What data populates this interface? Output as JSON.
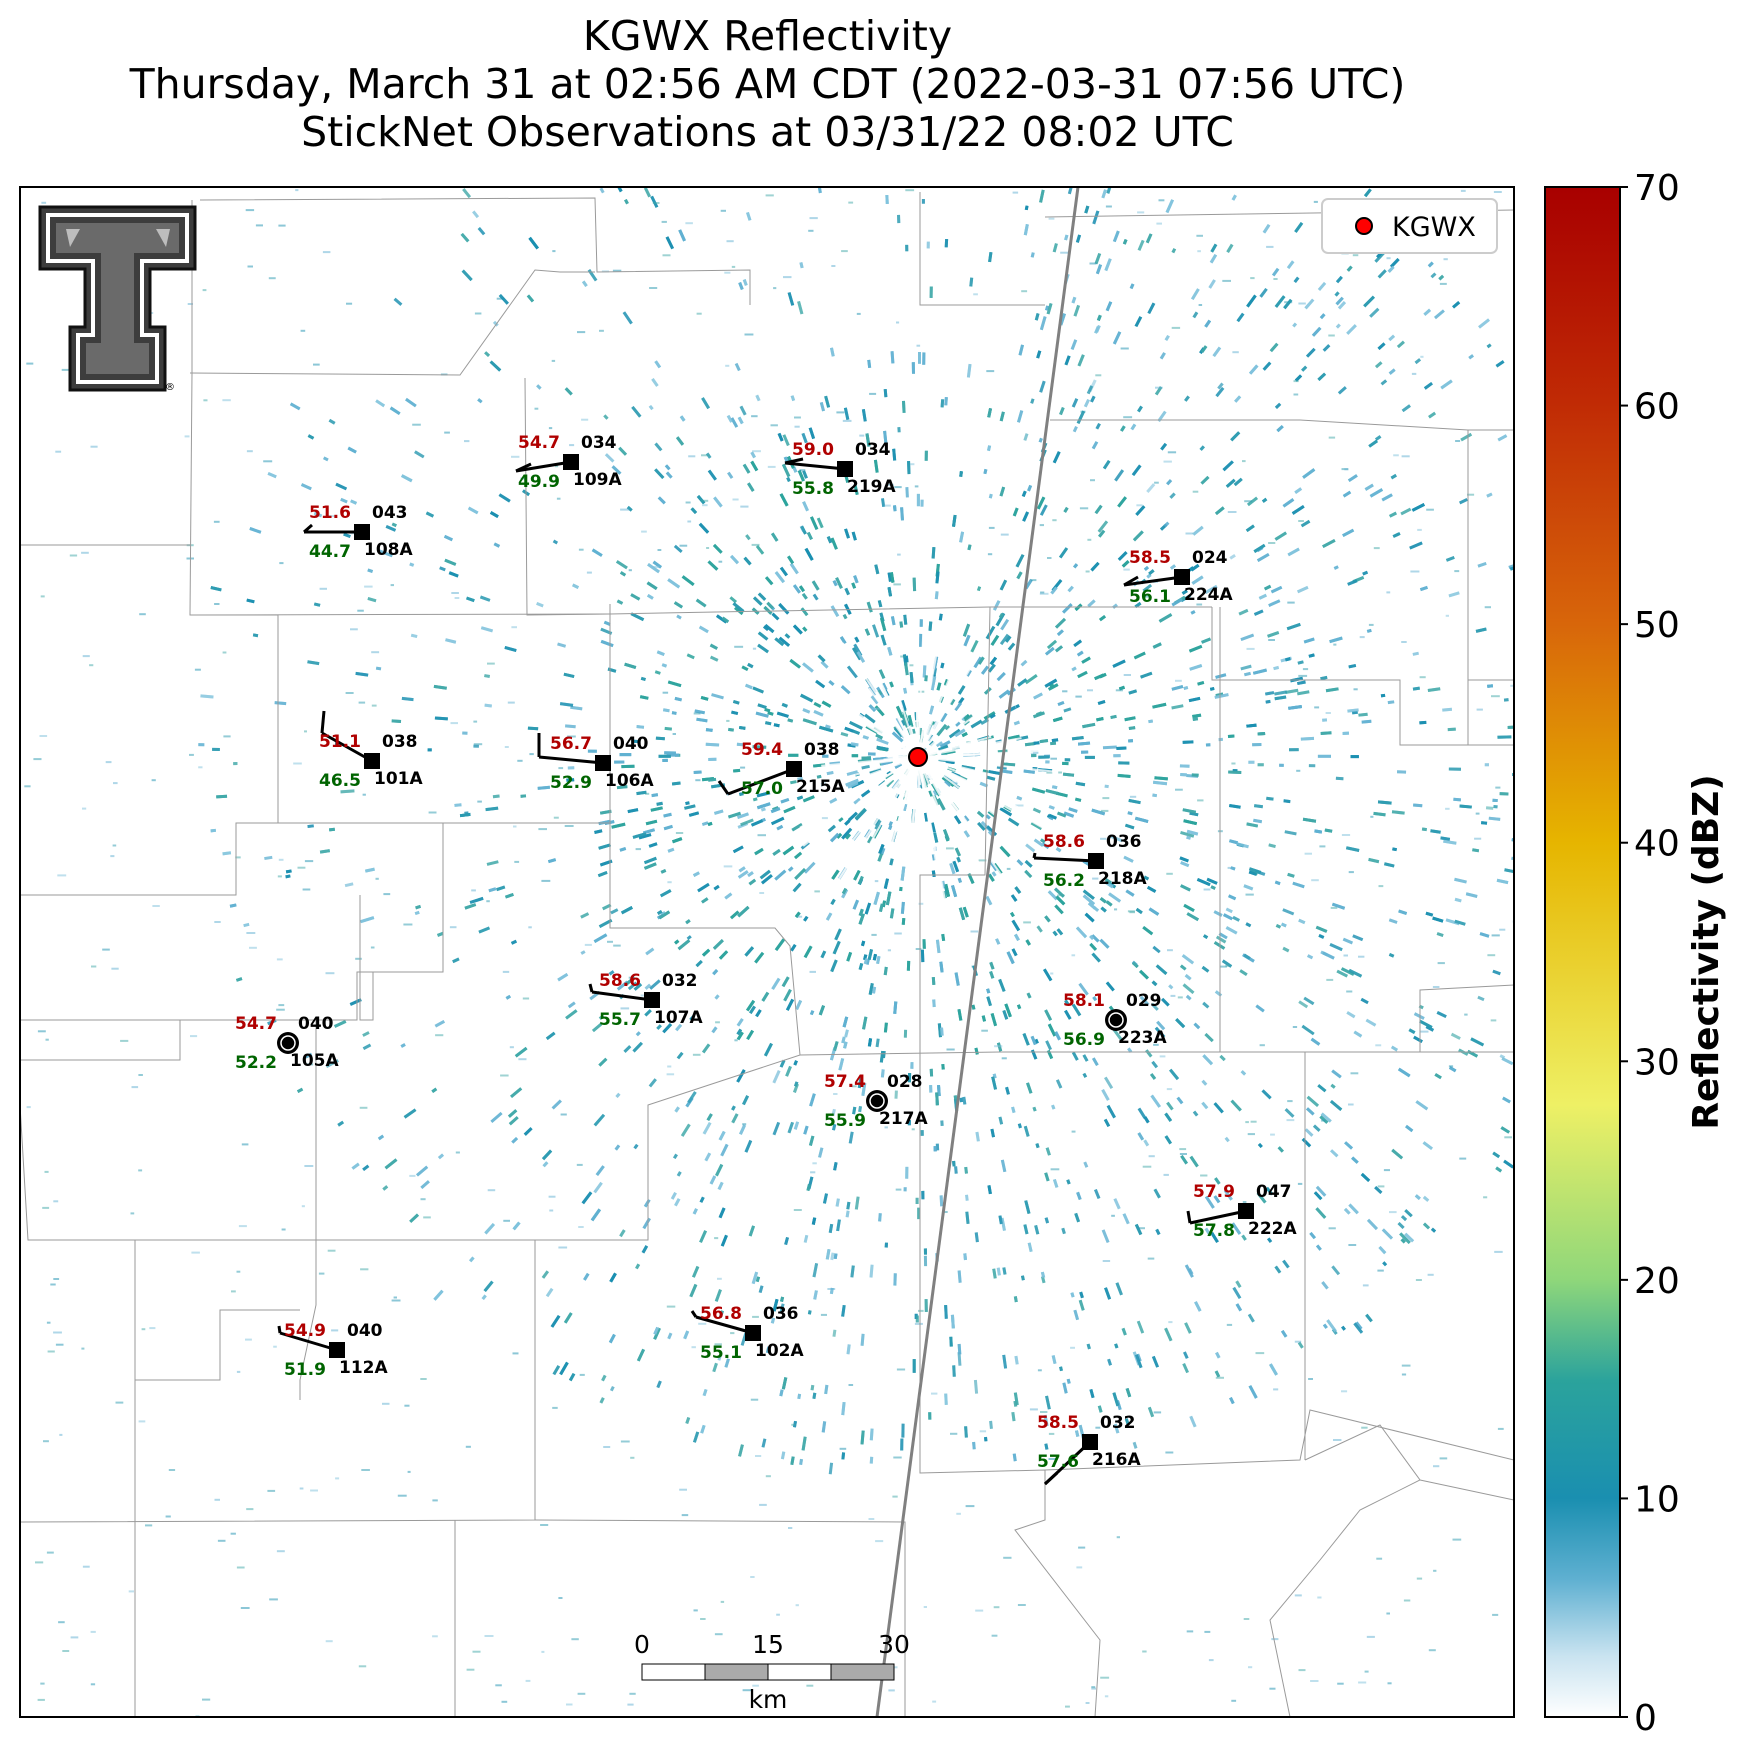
{
  "title": {
    "line1": "KGWX Reflectivity",
    "line2": "Thursday, March 31 at 02:56 AM CDT (2022-03-31 07:56 UTC)",
    "line3": "StickNet Observations at 03/31/22 08:02 UTC"
  },
  "legend": {
    "radar_label": "KGWX",
    "marker_color": "#ff0000"
  },
  "colorbar": {
    "label": "Reflectivity (dBZ)",
    "min": 0,
    "max": 70,
    "ticks": [
      "0",
      "10",
      "20",
      "30",
      "40",
      "50",
      "60",
      "70"
    ],
    "colors": [
      "#ffffff",
      "#1a8fb0",
      "#2ba39c",
      "#8fd77a",
      "#eef065",
      "#e6b500",
      "#d8660a",
      "#a80000"
    ]
  },
  "scale_bar": {
    "ticks": [
      "0",
      "15",
      "30"
    ],
    "unit": "km"
  },
  "logo": {
    "icon": "texas-tech-double-t-logo"
  },
  "stations": [
    {
      "id": "109A",
      "temp": "54.7",
      "dew": "49.9",
      "wind": "034"
    },
    {
      "id": "219A",
      "temp": "59.0",
      "dew": "55.8",
      "wind": "034"
    },
    {
      "id": "108A",
      "temp": "51.6",
      "dew": "44.7",
      "wind": "043"
    },
    {
      "id": "224A",
      "temp": "58.5",
      "dew": "56.1",
      "wind": "024"
    },
    {
      "id": "101A",
      "temp": "51.1",
      "dew": "46.5",
      "wind": "038"
    },
    {
      "id": "106A",
      "temp": "56.7",
      "dew": "52.9",
      "wind": "040"
    },
    {
      "id": "215A",
      "temp": "59.4",
      "dew": "57.0",
      "wind": "038"
    },
    {
      "id": "218A",
      "temp": "58.6",
      "dew": "56.2",
      "wind": "036"
    },
    {
      "id": "107A",
      "temp": "58.6",
      "dew": "55.7",
      "wind": "032"
    },
    {
      "id": "223A",
      "temp": "58.1",
      "dew": "56.9",
      "wind": "029"
    },
    {
      "id": "105A",
      "temp": "54.7",
      "dew": "52.2",
      "wind": "040"
    },
    {
      "id": "217A",
      "temp": "57.4",
      "dew": "55.9",
      "wind": "028"
    },
    {
      "id": "222A",
      "temp": "57.9",
      "dew": "57.8",
      "wind": "047"
    },
    {
      "id": "112A",
      "temp": "54.9",
      "dew": "51.9",
      "wind": "040"
    },
    {
      "id": "102A",
      "temp": "56.8",
      "dew": "55.1",
      "wind": "036"
    },
    {
      "id": "216A",
      "temp": "58.5",
      "dew": "57.6",
      "wind": "032"
    }
  ]
}
